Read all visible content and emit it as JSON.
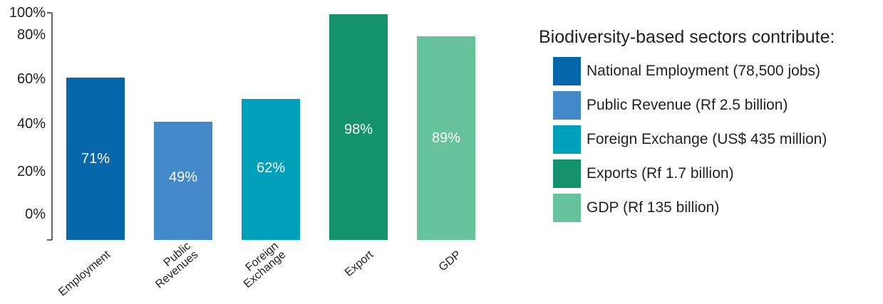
{
  "chart_data": {
    "type": "bar",
    "categories": [
      [
        "Employment"
      ],
      [
        "Public",
        "Revenues"
      ],
      [
        "Foreign",
        "Exchange"
      ],
      [
        "Export"
      ],
      [
        "GDP"
      ]
    ],
    "values": [
      71,
      49,
      62,
      98,
      89
    ],
    "data_labels": [
      "71%",
      "49%",
      "62%",
      "98%",
      "89%"
    ],
    "colors": [
      "#0867ab",
      "#4389c9",
      "#00a0bb",
      "#14926b",
      "#66c29a"
    ],
    "label_color": "#ffffff",
    "y_ticks": [
      {
        "value": 100,
        "label": "100%"
      },
      {
        "value": 80,
        "label": "80%"
      },
      {
        "value": 60,
        "label": "60%"
      },
      {
        "value": 40,
        "label": "40%"
      },
      {
        "value": 20,
        "label": "20%"
      },
      {
        "value": 0,
        "label": "0%"
      }
    ],
    "ylim": [
      0,
      100
    ],
    "grid": false,
    "legend_position": "right"
  },
  "legend": {
    "title": "Biodiversity-based sectors contribute:",
    "items": [
      {
        "label": "National Employment (78,500 jobs)",
        "color": "#0867ab"
      },
      {
        "label": "Public Revenue (Rf 2.5 billion)",
        "color": "#4389c9"
      },
      {
        "label": "Foreign Exchange (US$ 435 million)",
        "color": "#00a0bb"
      },
      {
        "label": "Exports (Rf 1.7 billion)",
        "color": "#14926b"
      },
      {
        "label": "GDP (Rf 135 billion)",
        "color": "#66c29a"
      }
    ]
  }
}
